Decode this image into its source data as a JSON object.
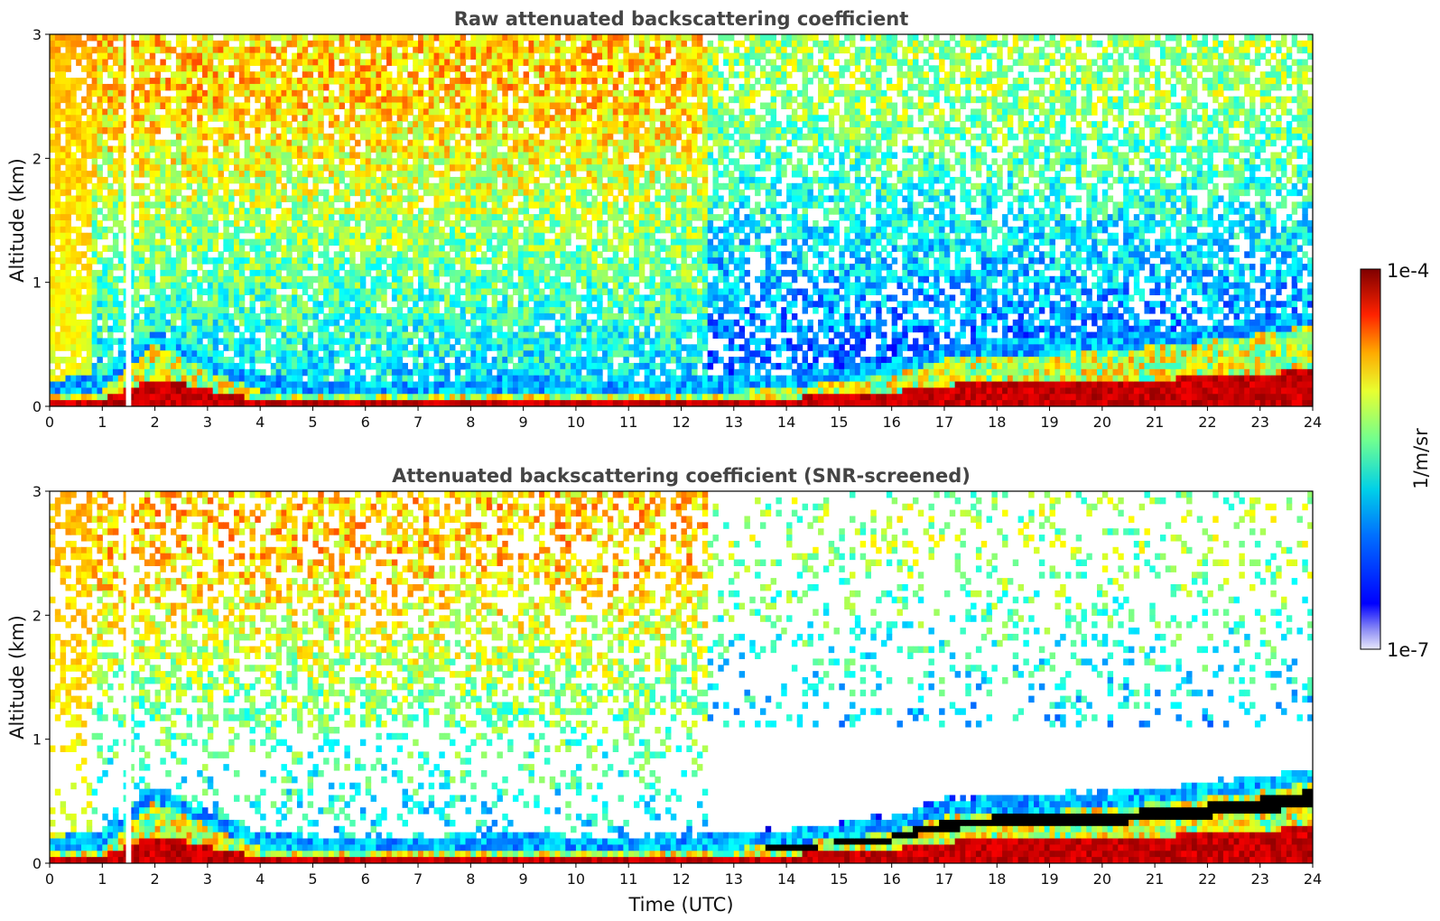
{
  "chart_data": [
    {
      "type": "heatmap",
      "title": "Raw attenuated backscattering coefficient",
      "xlabel": "",
      "ylabel": "Altitude (km)",
      "xlim": [
        0,
        24
      ],
      "ylim": [
        0,
        3
      ],
      "xticks": [
        "0",
        "1",
        "2",
        "3",
        "4",
        "5",
        "6",
        "7",
        "8",
        "9",
        "10",
        "11",
        "12",
        "13",
        "14",
        "15",
        "16",
        "17",
        "18",
        "19",
        "20",
        "21",
        "22",
        "23",
        "24"
      ],
      "yticks": [
        "0",
        "1",
        "2",
        "3"
      ],
      "screened": false,
      "layer_height_km": {
        "x": [
          0,
          1,
          2,
          3,
          4,
          5,
          6,
          7,
          8,
          9,
          10,
          11,
          12,
          13,
          14,
          15,
          16,
          17,
          18,
          19,
          20,
          21,
          22,
          23,
          24
        ],
        "y": [
          0.1,
          0.12,
          0.5,
          0.3,
          0.12,
          0.1,
          0.1,
          0.1,
          0.1,
          0.12,
          0.1,
          0.1,
          0.1,
          0.12,
          0.15,
          0.2,
          0.25,
          0.38,
          0.42,
          0.42,
          0.45,
          0.48,
          0.53,
          0.58,
          0.65
        ]
      }
    },
    {
      "type": "heatmap",
      "title": "Attenuated backscattering coefficient (SNR-screened)",
      "xlabel": "Time (UTC)",
      "ylabel": "Altitude (km)",
      "xlim": [
        0,
        24
      ],
      "ylim": [
        0,
        3
      ],
      "xticks": [
        "0",
        "1",
        "2",
        "3",
        "4",
        "5",
        "6",
        "7",
        "8",
        "9",
        "10",
        "11",
        "12",
        "13",
        "14",
        "15",
        "16",
        "17",
        "18",
        "19",
        "20",
        "21",
        "22",
        "23",
        "24"
      ],
      "yticks": [
        "0",
        "1",
        "2",
        "3"
      ],
      "screened": true,
      "layer_height_km": {
        "x": [
          0,
          1,
          2,
          3,
          4,
          5,
          6,
          7,
          8,
          9,
          10,
          11,
          12,
          13,
          14,
          15,
          16,
          17,
          18,
          19,
          20,
          21,
          22,
          23,
          24
        ],
        "y": [
          0.1,
          0.12,
          0.5,
          0.3,
          0.12,
          0.1,
          0.1,
          0.1,
          0.1,
          0.12,
          0.1,
          0.1,
          0.1,
          0.12,
          0.15,
          0.2,
          0.25,
          0.38,
          0.42,
          0.42,
          0.45,
          0.48,
          0.53,
          0.58,
          0.65
        ]
      }
    }
  ],
  "colorbar": {
    "max_label": "1e-4",
    "min_label": "1e-7",
    "unit_label": "1/m/sr",
    "colormap": "jet",
    "scale": "log"
  }
}
